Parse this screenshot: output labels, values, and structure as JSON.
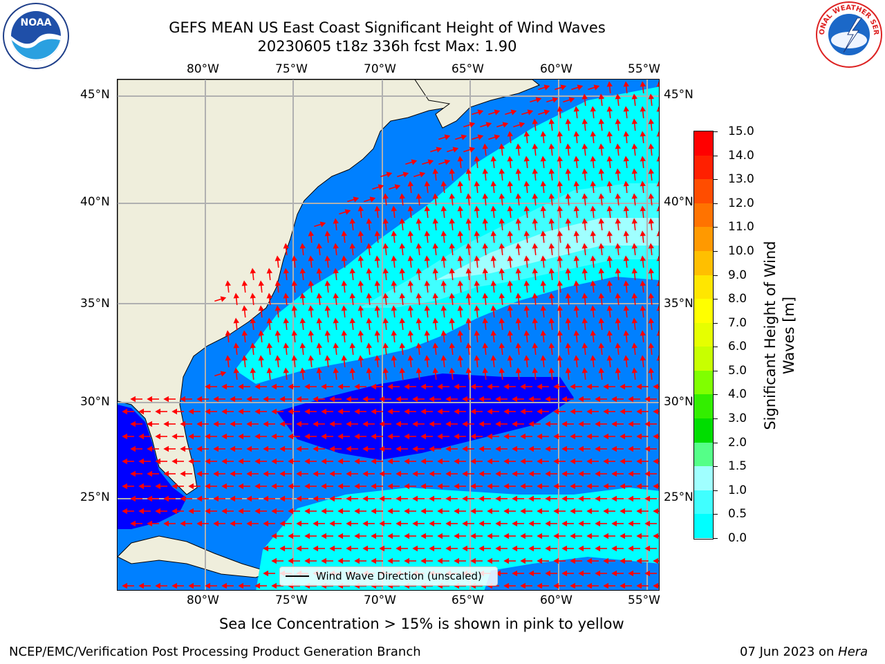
{
  "title": {
    "line1": "GEFS MEAN US East Coast Significant Height of Wind Waves",
    "line2": "20230605 t18z 336h fcst   Max: 1.90"
  },
  "logos": {
    "left": "NOAA",
    "right": "NATIONAL WEATHER SERVICE"
  },
  "map": {
    "lon_ticks_top": [
      "80°W",
      "75°W",
      "70°W",
      "65°W",
      "60°W",
      "55°W"
    ],
    "lon_ticks_bottom": [
      "80°W",
      "75°W",
      "70°W",
      "65°W",
      "60°W",
      "55°W"
    ],
    "lat_ticks_left": [
      "45°N",
      "40°N",
      "35°N",
      "30°N",
      "25°N"
    ],
    "lat_ticks_right": [
      "45°N",
      "40°N",
      "35°N",
      "30°N",
      "25°N"
    ],
    "legend_label": "Wind Wave Direction (unscaled)",
    "colors": {
      "land": "#efeedc",
      "ocean_dark": "#0000ff",
      "ocean_mid": "#0080ff",
      "ocean_cyan": "#00ffff",
      "ocean_light": "#40ffff",
      "ocean_pale": "#a0ffff",
      "arrows": "#ff0000"
    }
  },
  "colorbar": {
    "label": "Significant Height of Wind Waves [m]",
    "ticks": [
      "15.0",
      "14.0",
      "13.0",
      "12.0",
      "11.0",
      "10.0",
      "9.0",
      "8.0",
      "7.0",
      "6.0",
      "5.0",
      "4.0",
      "3.0",
      "2.0",
      "1.5",
      "1.0",
      "0.5",
      "0.0"
    ],
    "colors": [
      "#ff0000",
      "#ff2000",
      "#ff4d00",
      "#ff7300",
      "#ff9900",
      "#ffbf00",
      "#ffe600",
      "#ffff00",
      "#e6ff00",
      "#c8ff00",
      "#80ff00",
      "#33ee00",
      "#00dd00",
      "#55ff88",
      "#a0ffff",
      "#40ffff",
      "#00ffff",
      "#0080ff",
      "#0000ff"
    ]
  },
  "footer": {
    "note": "Sea Ice Concentration > 15% is shown in pink to yellow",
    "left": "NCEP/EMC/Verification Post Processing Product Generation Branch",
    "right_date": "07 Jun 2023 on ",
    "right_host": "Hera"
  }
}
